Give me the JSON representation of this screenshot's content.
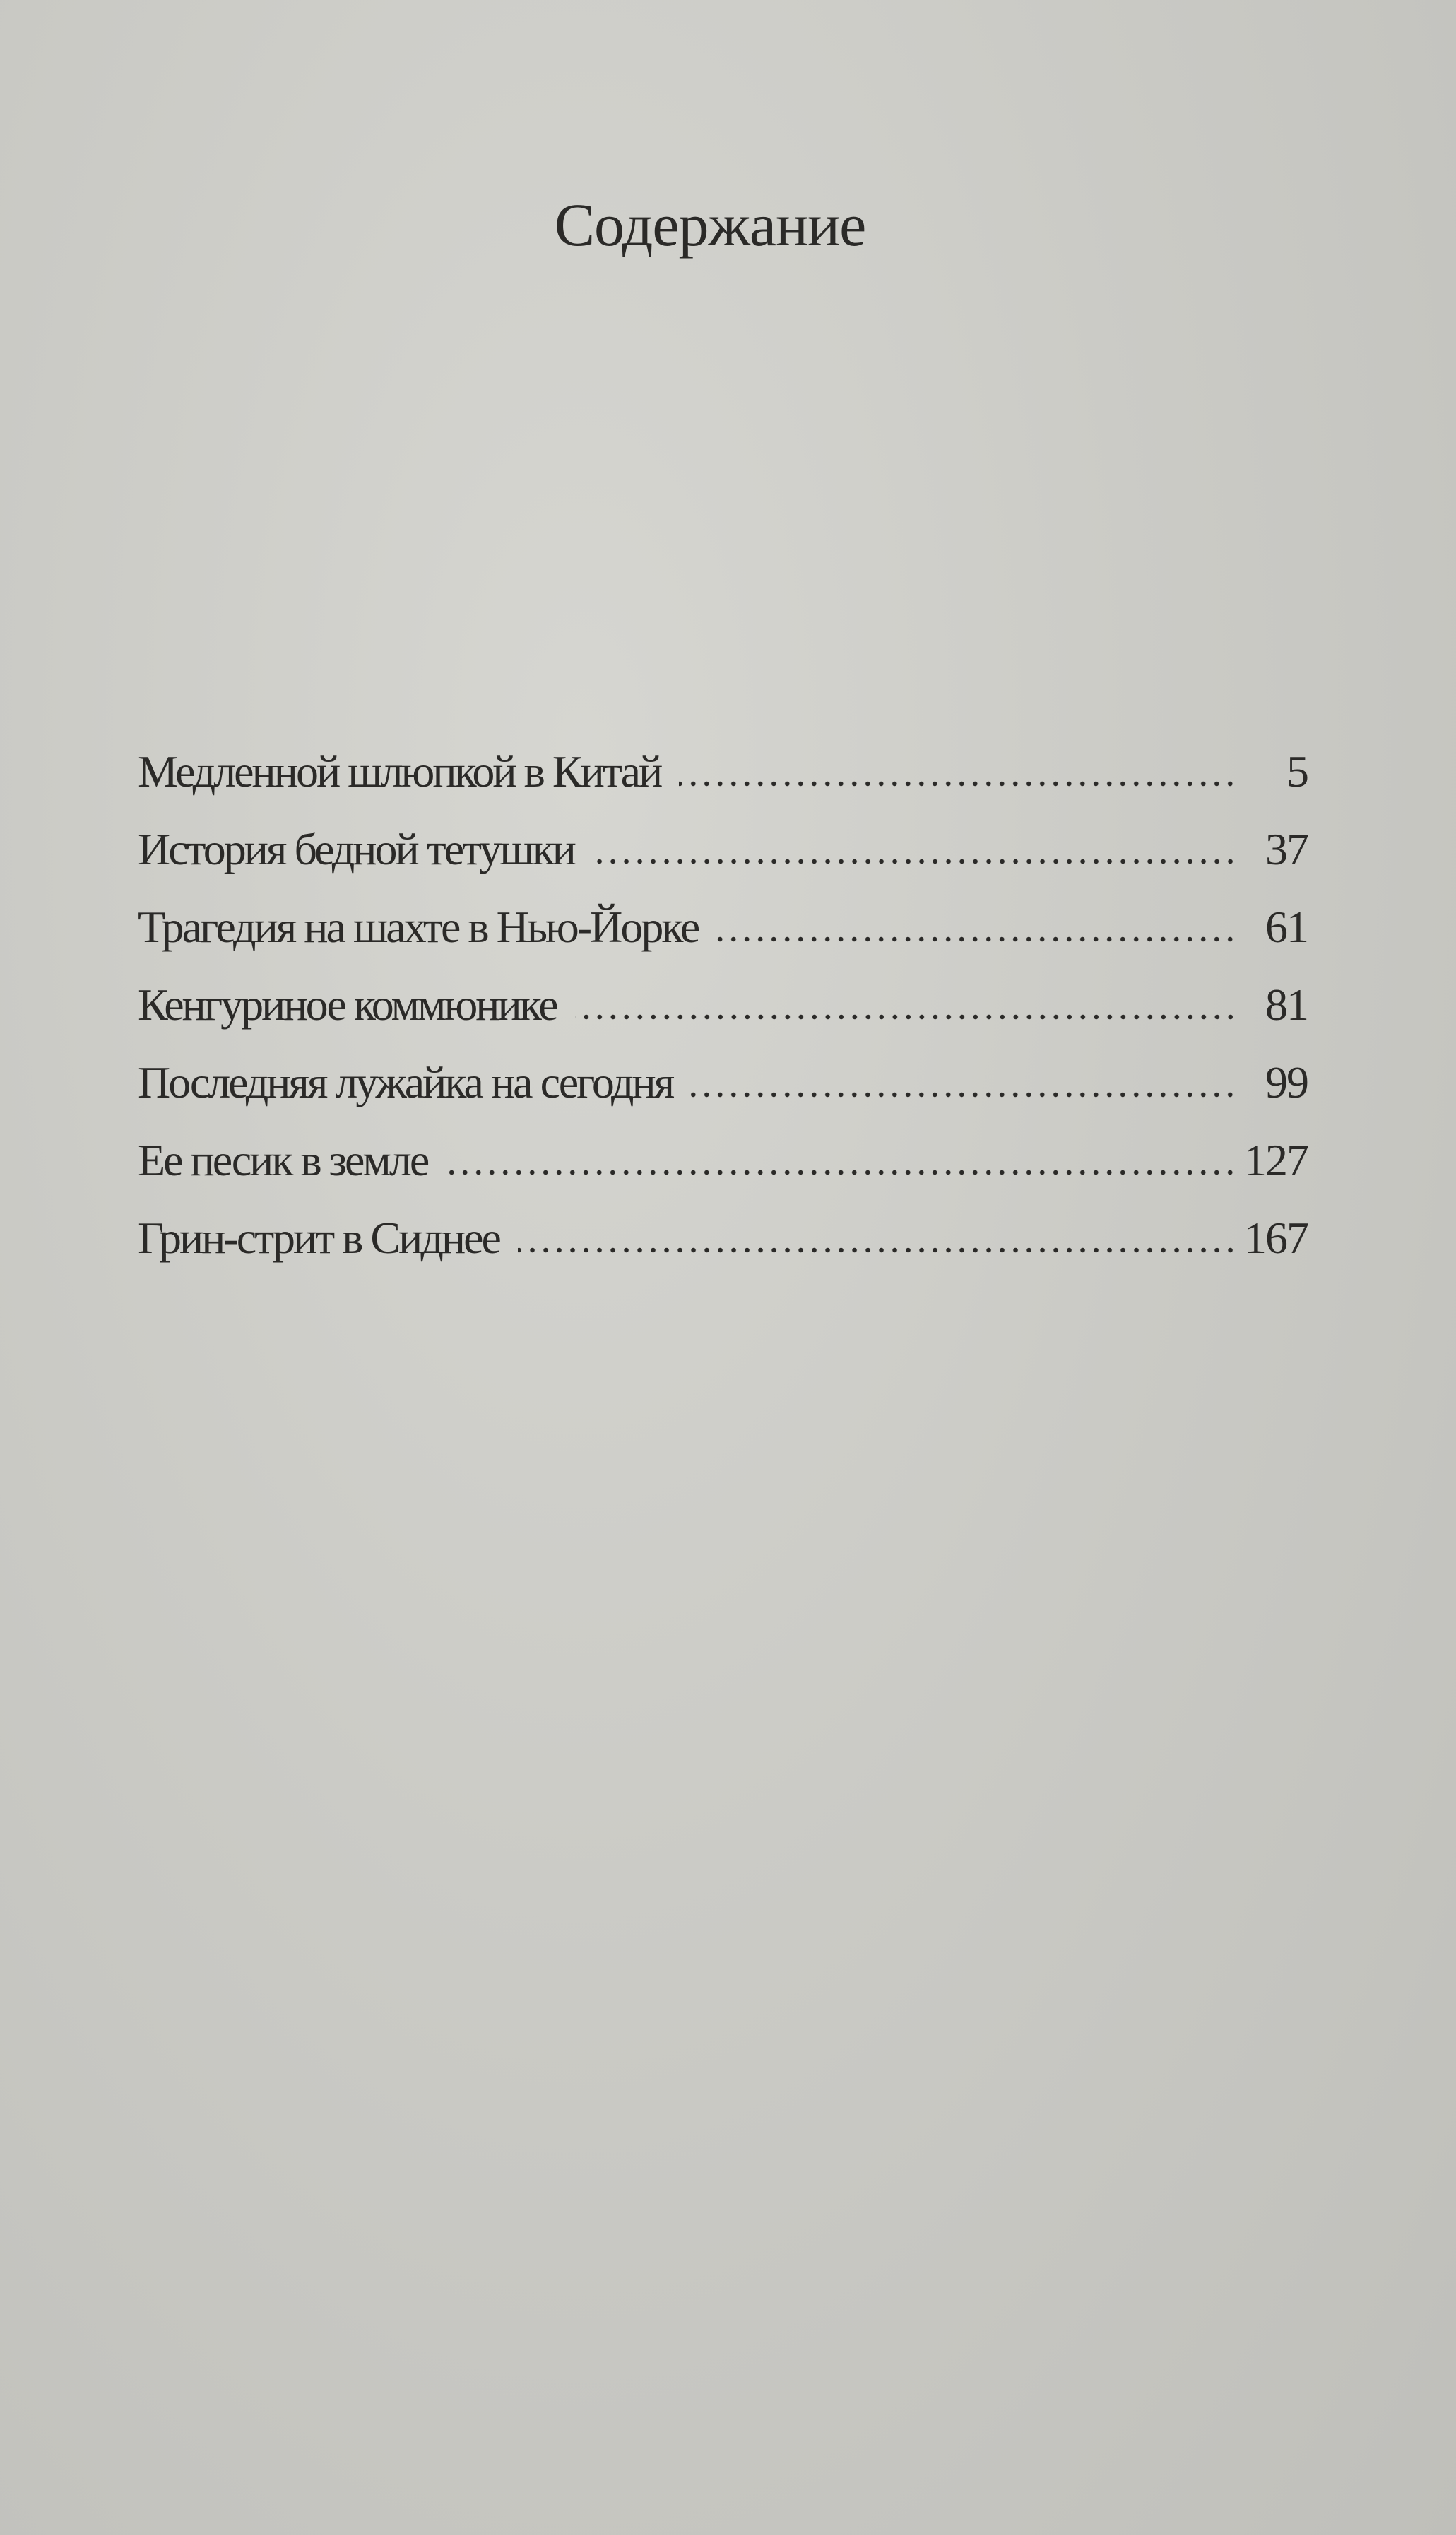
{
  "title": "Содержание",
  "entries": [
    {
      "title": "Медленной шлюпкой в Китай",
      "page": "5"
    },
    {
      "title": "История бедной тетушки",
      "page": "37"
    },
    {
      "title": "Трагедия на шахте в Нью-Йорке",
      "page": "61"
    },
    {
      "title": "Кенгуриное коммюнике",
      "page": "81"
    },
    {
      "title": "Последняя лужайка на сегодня",
      "page": "99"
    },
    {
      "title": "Ее песик в земле",
      "page": "127"
    },
    {
      "title": "Грин-стрит в Сиднее",
      "page": "167"
    }
  ]
}
